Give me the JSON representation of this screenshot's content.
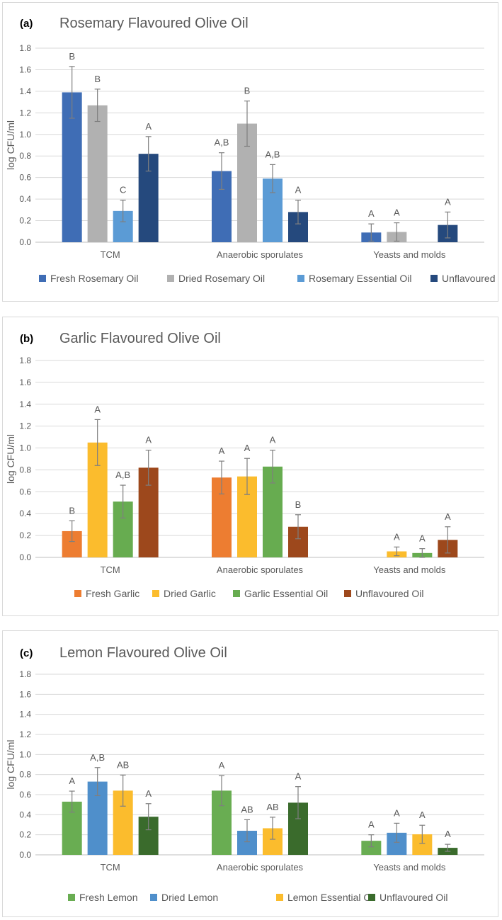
{
  "chart_data": [
    {
      "type": "bar",
      "panel_label": "(a)",
      "title": "Rosemary Flavoured Olive Oil",
      "ylabel": "log CFU/ml",
      "xlabel": "",
      "ylim": [
        0,
        1.8
      ],
      "yticks": [
        "0.0",
        "0.2",
        "0.4",
        "0.6",
        "0.8",
        "1.0",
        "1.2",
        "1.4",
        "1.6",
        "1.8"
      ],
      "categories": [
        "TCM",
        "Anaerobic sporulates",
        "Yeasts and molds"
      ],
      "legend_position": "bottom",
      "series": [
        {
          "name": "Fresh Rosemary Oil",
          "color": "#3F6DB5",
          "values": [
            1.39,
            0.66,
            0.09
          ],
          "errors": [
            0.24,
            0.17,
            0.08
          ],
          "letters": [
            "B",
            "A,B",
            "A"
          ]
        },
        {
          "name": "Dried Rosemary Oil",
          "color": "#B1B1B1",
          "values": [
            1.27,
            1.1,
            0.095
          ],
          "errors": [
            0.15,
            0.21,
            0.085
          ],
          "letters": [
            "B",
            "B",
            "A"
          ]
        },
        {
          "name": "Rosemary Essential Oil",
          "color": "#5B9BD5",
          "values": [
            0.29,
            0.59,
            0
          ],
          "errors": [
            0.1,
            0.13,
            0
          ],
          "letters": [
            "C",
            "A,B",
            ""
          ]
        },
        {
          "name": "Unflavoured Oil",
          "color": "#25497D",
          "values": [
            0.82,
            0.28,
            0.16
          ],
          "errors": [
            0.16,
            0.11,
            0.12
          ],
          "letters": [
            "A",
            "A",
            "A"
          ]
        }
      ]
    },
    {
      "type": "bar",
      "panel_label": "(b)",
      "title": "Garlic Flavoured Olive Oil",
      "ylabel": "log CFU/ml",
      "xlabel": "",
      "ylim": [
        0,
        1.8
      ],
      "yticks": [
        "0.0",
        "0.2",
        "0.4",
        "0.6",
        "0.8",
        "1.0",
        "1.2",
        "1.4",
        "1.6",
        "1.8"
      ],
      "categories": [
        "TCM",
        "Anaerobic sporulates",
        "Yeasts and molds"
      ],
      "legend_position": "bottom",
      "series": [
        {
          "name": "Fresh Garlic",
          "color": "#ED7D31",
          "values": [
            0.24,
            0.73,
            0
          ],
          "errors": [
            0.095,
            0.15,
            0
          ],
          "letters": [
            "B",
            "A",
            ""
          ]
        },
        {
          "name": "Dried Garlic",
          "color": "#FBBC2D",
          "values": [
            1.05,
            0.74,
            0.055
          ],
          "errors": [
            0.21,
            0.165,
            0.04
          ],
          "letters": [
            "A",
            "A",
            "A"
          ]
        },
        {
          "name": "Garlic Essential Oil",
          "color": "#67AC50",
          "values": [
            0.51,
            0.83,
            0.04
          ],
          "errors": [
            0.15,
            0.15,
            0.04
          ],
          "letters": [
            "A,B",
            "A",
            "A"
          ]
        },
        {
          "name": "Unflavoured Oil",
          "color": "#9D481C",
          "values": [
            0.82,
            0.28,
            0.16
          ],
          "errors": [
            0.16,
            0.11,
            0.12
          ],
          "letters": [
            "A",
            "B",
            "A"
          ]
        }
      ]
    },
    {
      "type": "bar",
      "panel_label": "(c)",
      "title": "Lemon Flavoured Olive Oil",
      "ylabel": "log CFU/ml",
      "xlabel": "",
      "ylim": [
        0,
        1.8
      ],
      "yticks": [
        "0.0",
        "0.2",
        "0.4",
        "0.6",
        "0.8",
        "1.0",
        "1.2",
        "1.4",
        "1.6",
        "1.8"
      ],
      "categories": [
        "TCM",
        "Anaerobic sporulates",
        "Yeasts and molds"
      ],
      "legend_position": "bottom",
      "series": [
        {
          "name": "Fresh Lemon",
          "color": "#69AD52",
          "values": [
            0.53,
            0.64,
            0.14
          ],
          "errors": [
            0.105,
            0.15,
            0.06
          ],
          "letters": [
            "A",
            "A",
            "A"
          ]
        },
        {
          "name": "Dried Lemon",
          "color": "#4F8FCB",
          "values": [
            0.73,
            0.24,
            0.22
          ],
          "errors": [
            0.14,
            0.11,
            0.095
          ],
          "letters": [
            "A,B",
            "AB",
            "A"
          ]
        },
        {
          "name": "Lemon Essential Oil",
          "color": "#FBBC2D",
          "values": [
            0.64,
            0.265,
            0.205
          ],
          "errors": [
            0.155,
            0.11,
            0.09
          ],
          "letters": [
            "AB",
            "AB",
            "A"
          ]
        },
        {
          "name": "Unflavoured Oil",
          "color": "#3A6B2C",
          "values": [
            0.38,
            0.52,
            0.07
          ],
          "errors": [
            0.13,
            0.16,
            0.035
          ],
          "letters": [
            "A",
            "A",
            "A"
          ]
        }
      ]
    }
  ]
}
